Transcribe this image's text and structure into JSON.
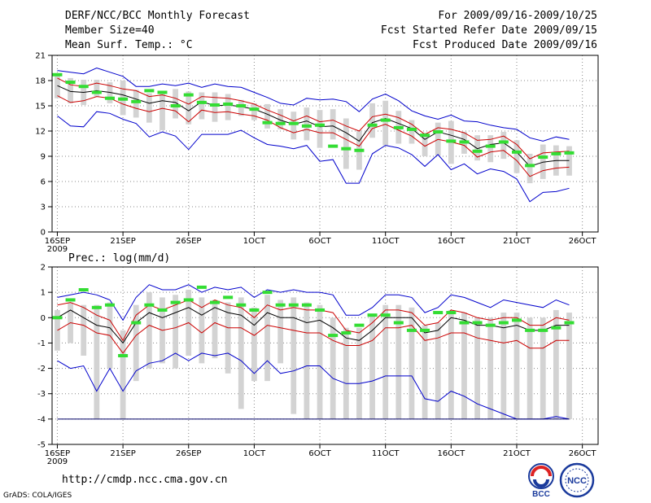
{
  "header": {
    "title": "DERF/NCC/BCC Monthly Forecast",
    "member_size": "Member Size=40",
    "variable": "Mean Surf. Temp.: °C",
    "range": "For 2009/09/16-2009/10/25",
    "started": "Fcst Started Refer Date 2009/09/15",
    "produced": "Fcst Produced Date 2009/09/16"
  },
  "footer": {
    "url": "http://cmdp.ncc.cma.gov.cn",
    "credit": "GrADS: COLA/IGES",
    "logo_bcc": "BCC",
    "logo_ncc": "NCC"
  },
  "colors": {
    "envelope": "#0000cc",
    "spread": "#cc0000",
    "mean": "#000000",
    "observed": "#33dd33",
    "box": "#d3d3d3",
    "grid": "#888888"
  },
  "chart_data": [
    {
      "type": "line",
      "title": "Mean Surf. Temp.: °C",
      "ylabel": "°C",
      "ylim": [
        0,
        21
      ],
      "yticks": [
        "0",
        "3",
        "6",
        "9",
        "12",
        "15",
        "18",
        "21"
      ],
      "grid": true,
      "xtick_labels": [
        {
          "day": 1,
          "label": "16SEP",
          "sub": "2009"
        },
        {
          "day": 6,
          "label": "21SEP"
        },
        {
          "day": 11,
          "label": "26SEP"
        },
        {
          "day": 16,
          "label": "1OCT"
        },
        {
          "day": 21,
          "label": "6OCT"
        },
        {
          "day": 26,
          "label": "11OCT"
        },
        {
          "day": 31,
          "label": "16OCT"
        },
        {
          "day": 36,
          "label": "21OCT"
        },
        {
          "day": 41,
          "label": "26OCT"
        }
      ],
      "days": [
        1,
        2,
        3,
        4,
        5,
        6,
        7,
        8,
        9,
        10,
        11,
        12,
        13,
        14,
        15,
        16,
        17,
        18,
        19,
        20,
        21,
        22,
        23,
        24,
        25,
        26,
        27,
        28,
        29,
        30,
        31,
        32,
        33,
        34,
        35,
        36,
        37,
        38,
        39,
        40
      ],
      "series": [
        {
          "name": "Ensemble max",
          "role": "envelope",
          "values": [
            19.2,
            19.0,
            18.8,
            19.5,
            19.0,
            18.5,
            17.3,
            17.3,
            17.6,
            17.4,
            17.7,
            17.2,
            17.6,
            17.3,
            17.2,
            16.6,
            16.0,
            15.3,
            15.1,
            15.9,
            15.7,
            15.8,
            15.5,
            14.3,
            15.8,
            16.4,
            15.6,
            14.4,
            13.8,
            13.4,
            13.9,
            13.2,
            13.1,
            12.7,
            12.4,
            12.2,
            11.2,
            10.8,
            11.3,
            11.0
          ]
        },
        {
          "name": "Ensemble upper",
          "role": "spread",
          "values": [
            18.3,
            17.5,
            17.3,
            17.7,
            17.4,
            17.0,
            16.8,
            16.1,
            16.3,
            15.9,
            15.2,
            16.1,
            16.0,
            15.9,
            15.6,
            15.2,
            14.5,
            13.9,
            13.2,
            13.8,
            13.1,
            13.3,
            12.6,
            12.0,
            13.7,
            14.0,
            13.6,
            12.8,
            11.6,
            12.4,
            12.2,
            11.8,
            10.9,
            11.0,
            11.4,
            10.4,
            8.7,
            9.4,
            9.5,
            9.6
          ]
        },
        {
          "name": "Ensemble mean",
          "role": "mean",
          "values": [
            17.4,
            16.7,
            16.6,
            16.8,
            16.6,
            16.3,
            15.8,
            15.3,
            15.6,
            15.4,
            14.4,
            15.5,
            15.0,
            15.1,
            14.9,
            14.6,
            14.0,
            13.3,
            12.8,
            13.2,
            12.5,
            12.6,
            11.8,
            10.8,
            13.0,
            13.5,
            12.9,
            12.3,
            11.0,
            11.9,
            11.5,
            11.0,
            9.9,
            10.4,
            10.6,
            9.5,
            7.8,
            8.3,
            8.5,
            8.5
          ]
        },
        {
          "name": "Ensemble lower",
          "role": "spread",
          "values": [
            16.2,
            15.4,
            15.6,
            16.1,
            15.9,
            15.2,
            14.7,
            14.3,
            14.7,
            14.4,
            13.1,
            14.5,
            14.2,
            14.3,
            14.0,
            13.8,
            13.3,
            12.4,
            11.8,
            12.2,
            11.8,
            11.8,
            11.0,
            10.2,
            12.3,
            12.8,
            12.1,
            11.4,
            10.2,
            11.0,
            10.7,
            10.3,
            8.9,
            9.5,
            9.7,
            8.5,
            6.6,
            7.3,
            7.6,
            7.7
          ]
        },
        {
          "name": "Ensemble min",
          "role": "envelope",
          "values": [
            13.8,
            12.6,
            12.5,
            14.3,
            14.1,
            13.4,
            12.9,
            11.3,
            11.9,
            11.4,
            9.8,
            11.6,
            11.6,
            11.6,
            12.1,
            11.2,
            10.4,
            10.2,
            9.9,
            10.3,
            8.4,
            8.6,
            5.8,
            5.8,
            9.3,
            10.3,
            10.0,
            9.2,
            7.8,
            9.2,
            7.4,
            8.1,
            6.9,
            7.5,
            7.2,
            6.3,
            3.6,
            4.7,
            4.8,
            5.2
          ]
        }
      ],
      "boxes": {
        "low": [
          15.9,
          15.3,
          15.1,
          16.1,
          15.3,
          13.9,
          13.6,
          13.0,
          12.1,
          13.5,
          12.8,
          13.4,
          13.1,
          13.3,
          13.8,
          13.3,
          12.3,
          12.2,
          11.0,
          10.9,
          10.0,
          11.0,
          7.5,
          7.4,
          11.2,
          10.3,
          10.5,
          10.5,
          9.0,
          9.1,
          8.1,
          9.3,
          8.5,
          8.3,
          8.7,
          7.0,
          5.8,
          6.3,
          6.7,
          6.7
        ],
        "high": [
          18.7,
          18.3,
          18.1,
          18.1,
          17.8,
          18.0,
          16.9,
          16.5,
          16.6,
          17.0,
          16.7,
          16.6,
          16.6,
          16.4,
          15.7,
          15.3,
          15.2,
          14.6,
          14.3,
          14.8,
          14.5,
          14.6,
          13.5,
          12.1,
          15.3,
          15.6,
          14.4,
          13.3,
          11.8,
          13.0,
          13.2,
          11.9,
          11.5,
          11.5,
          11.9,
          10.9,
          9.3,
          10.4,
          10.3,
          10.2
        ]
      },
      "observed": [
        18.7,
        17.8,
        17.3,
        16.6,
        15.9,
        15.8,
        15.5,
        16.8,
        16.6,
        15.0,
        16.3,
        15.4,
        15.1,
        15.2,
        15.0,
        14.6,
        13.0,
        12.9,
        12.9,
        12.6,
        12.7,
        10.2,
        9.9,
        9.7,
        12.7,
        13.3,
        12.4,
        12.2,
        11.5,
        11.9,
        10.8,
        10.7,
        9.6,
        10.2,
        10.7,
        9.5,
        7.9,
        8.9,
        9.3,
        9.4
      ]
    },
    {
      "type": "line",
      "title": "Prec.: log(mm/d)",
      "ylabel": "log(mm/d)",
      "ylim": [
        -5,
        2
      ],
      "yticks": [
        "-5",
        "-4",
        "-3",
        "-2",
        "-1",
        "0",
        "1",
        "2"
      ],
      "grid": true,
      "xtick_labels": [
        {
          "day": 1,
          "label": "16SEP",
          "sub": "2009"
        },
        {
          "day": 6,
          "label": "21SEP"
        },
        {
          "day": 11,
          "label": "26SEP"
        },
        {
          "day": 16,
          "label": "1OCT"
        },
        {
          "day": 21,
          "label": "6OCT"
        },
        {
          "day": 26,
          "label": "11OCT"
        },
        {
          "day": 31,
          "label": "16OCT"
        },
        {
          "day": 36,
          "label": "21OCT"
        },
        {
          "day": 41,
          "label": "26OCT"
        }
      ],
      "days": [
        1,
        2,
        3,
        4,
        5,
        6,
        7,
        8,
        9,
        10,
        11,
        12,
        13,
        14,
        15,
        16,
        17,
        18,
        19,
        20,
        21,
        22,
        23,
        24,
        25,
        26,
        27,
        28,
        29,
        30,
        31,
        32,
        33,
        34,
        35,
        36,
        37,
        38,
        39,
        40
      ],
      "series": [
        {
          "name": "Ensemble max",
          "role": "envelope",
          "values": [
            0.8,
            0.9,
            1.0,
            0.9,
            0.7,
            -0.1,
            0.8,
            1.3,
            1.1,
            1.1,
            1.3,
            1.0,
            1.2,
            1.1,
            1.2,
            0.8,
            1.1,
            1.0,
            1.1,
            1.0,
            1.0,
            0.9,
            0.1,
            0.1,
            0.4,
            0.9,
            0.9,
            0.8,
            0.2,
            0.4,
            0.9,
            0.8,
            0.6,
            0.4,
            0.7,
            0.6,
            0.5,
            0.4,
            0.7,
            0.5
          ]
        },
        {
          "name": "Ensemble upper",
          "role": "spread",
          "values": [
            0.5,
            0.6,
            0.4,
            0.1,
            -0.1,
            -0.9,
            0.1,
            0.5,
            0.3,
            0.5,
            0.7,
            0.4,
            0.7,
            0.5,
            0.4,
            0.0,
            0.5,
            0.3,
            0.4,
            0.3,
            0.3,
            0.2,
            -0.5,
            -0.6,
            -0.2,
            0.3,
            0.3,
            0.2,
            -0.3,
            -0.2,
            0.3,
            0.2,
            0.0,
            -0.1,
            0.0,
            0.0,
            -0.3,
            -0.3,
            0.0,
            -0.1
          ]
        },
        {
          "name": "Ensemble mean",
          "role": "mean",
          "values": [
            0.0,
            0.3,
            0.0,
            -0.3,
            -0.4,
            -1.0,
            -0.2,
            0.2,
            0.0,
            0.2,
            0.4,
            0.1,
            0.4,
            0.2,
            0.1,
            -0.3,
            0.2,
            0.0,
            0.0,
            -0.2,
            -0.1,
            -0.4,
            -0.8,
            -0.9,
            -0.5,
            0.0,
            0.0,
            0.0,
            -0.6,
            -0.5,
            0.0,
            -0.1,
            -0.3,
            -0.3,
            -0.4,
            -0.3,
            -0.5,
            -0.5,
            -0.3,
            -0.3
          ]
        },
        {
          "name": "Ensemble lower",
          "role": "spread",
          "values": [
            -0.5,
            -0.2,
            -0.3,
            -0.6,
            -0.7,
            -1.4,
            -0.7,
            -0.3,
            -0.5,
            -0.4,
            -0.2,
            -0.6,
            -0.2,
            -0.4,
            -0.4,
            -0.7,
            -0.3,
            -0.4,
            -0.5,
            -0.6,
            -0.6,
            -0.9,
            -1.1,
            -1.1,
            -0.9,
            -0.4,
            -0.4,
            -0.3,
            -0.9,
            -0.8,
            -0.6,
            -0.6,
            -0.8,
            -0.9,
            -1.0,
            -0.9,
            -1.2,
            -1.2,
            -0.9,
            -0.9
          ]
        },
        {
          "name": "Ensemble min",
          "role": "envelope",
          "values": [
            -1.7,
            -2.0,
            -1.9,
            -2.9,
            -2.0,
            -2.9,
            -2.1,
            -1.8,
            -1.7,
            -1.4,
            -1.7,
            -1.4,
            -1.5,
            -1.4,
            -1.7,
            -2.2,
            -1.7,
            -2.2,
            -2.1,
            -1.9,
            -1.9,
            -2.4,
            -2.6,
            -2.6,
            -2.5,
            -2.3,
            -2.3,
            -2.3,
            -3.2,
            -3.3,
            -2.9,
            -3.1,
            -3.4,
            -3.6,
            -3.8,
            -4.0,
            -4.0,
            -4.0,
            -3.9,
            -4.0
          ]
        },
        {
          "name": "Floor",
          "role": "floor",
          "values": [
            -4,
            -4,
            -4,
            -4,
            -4,
            -4,
            -4,
            -4,
            -4,
            -4,
            -4,
            -4,
            -4,
            -4,
            -4,
            -4,
            -4,
            -4,
            -4,
            -4,
            -4,
            -4,
            -4,
            -4,
            -4,
            -4,
            -4,
            -4,
            -4,
            -4,
            -4,
            -4,
            -4,
            -4,
            -4,
            -4,
            -4,
            -4,
            -4,
            -4
          ]
        }
      ],
      "boxes": {
        "low": [
          -1.3,
          -1.0,
          -1.5,
          -4.0,
          -2.0,
          -4.0,
          -2.5,
          -2.0,
          -1.8,
          -2.0,
          -1.5,
          -1.8,
          -1.6,
          -2.2,
          -3.6,
          -2.5,
          -2.5,
          -1.8,
          -3.8,
          -4.0,
          -4.0,
          -4.0,
          -4.0,
          -4.0,
          -4.0,
          -4.0,
          -4.0,
          -4.0,
          -4.0,
          -4.0,
          -4.0,
          -4.0,
          -4.0,
          -4.0,
          -4.0,
          -4.0,
          -4.0,
          -4.0,
          -4.0,
          -4.0
        ],
        "high": [
          0.3,
          0.6,
          0.5,
          0.5,
          0.6,
          -0.5,
          0.5,
          1.0,
          0.8,
          0.9,
          1.1,
          0.8,
          0.7,
          0.6,
          0.8,
          0.4,
          0.9,
          0.7,
          0.8,
          0.6,
          0.5,
          0.0,
          -0.4,
          -0.4,
          0.1,
          0.5,
          0.5,
          0.4,
          -0.3,
          -0.2,
          0.3,
          0.2,
          0.0,
          0.0,
          0.2,
          0.2,
          0.0,
          0.0,
          0.3,
          0.2
        ]
      },
      "observed": [
        0.0,
        0.7,
        1.1,
        0.4,
        0.5,
        -1.5,
        -0.2,
        0.5,
        0.3,
        0.6,
        0.7,
        1.2,
        0.6,
        0.8,
        0.5,
        0.3,
        1.0,
        0.5,
        0.5,
        0.5,
        0.3,
        -0.7,
        -0.6,
        -0.3,
        0.1,
        0.1,
        -0.2,
        -0.5,
        -0.5,
        0.2,
        0.2,
        -0.2,
        -0.2,
        -0.3,
        -0.2,
        -0.1,
        -0.5,
        -0.5,
        -0.4,
        -0.2
      ]
    }
  ]
}
